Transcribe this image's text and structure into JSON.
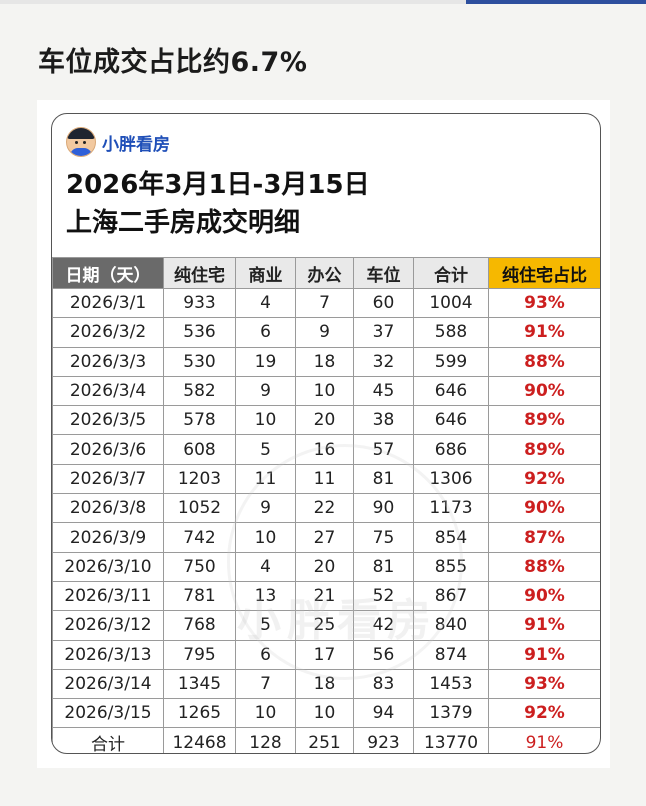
{
  "headline": "车位成交占比约6.7%",
  "brand": {
    "name": "小胖看房",
    "avatar_icon": "cartoon-avatar-icon"
  },
  "title": {
    "line1": "2026年3月1日-3月15日",
    "line2": "上海二手房成交明细"
  },
  "watermark": "小胖看房",
  "table": {
    "headers": [
      "日期（天）",
      "纯住宅",
      "商业",
      "办公",
      "车位",
      "合计",
      "纯住宅占比"
    ],
    "rows": [
      [
        "2026/3/1",
        "933",
        "4",
        "7",
        "60",
        "1004",
        "93%"
      ],
      [
        "2026/3/2",
        "536",
        "6",
        "9",
        "37",
        "588",
        "91%"
      ],
      [
        "2026/3/3",
        "530",
        "19",
        "18",
        "32",
        "599",
        "88%"
      ],
      [
        "2026/3/4",
        "582",
        "9",
        "10",
        "45",
        "646",
        "90%"
      ],
      [
        "2026/3/5",
        "578",
        "10",
        "20",
        "38",
        "646",
        "89%"
      ],
      [
        "2026/3/6",
        "608",
        "5",
        "16",
        "57",
        "686",
        "89%"
      ],
      [
        "2026/3/7",
        "1203",
        "11",
        "11",
        "81",
        "1306",
        "92%"
      ],
      [
        "2026/3/8",
        "1052",
        "9",
        "22",
        "90",
        "1173",
        "90%"
      ],
      [
        "2026/3/9",
        "742",
        "10",
        "27",
        "75",
        "854",
        "87%"
      ],
      [
        "2026/3/10",
        "750",
        "4",
        "20",
        "81",
        "855",
        "88%"
      ],
      [
        "2026/3/11",
        "781",
        "13",
        "21",
        "52",
        "867",
        "90%"
      ],
      [
        "2026/3/12",
        "768",
        "5",
        "25",
        "42",
        "840",
        "91%"
      ],
      [
        "2026/3/13",
        "795",
        "6",
        "17",
        "56",
        "874",
        "91%"
      ],
      [
        "2026/3/14",
        "1345",
        "7",
        "18",
        "83",
        "1453",
        "93%"
      ],
      [
        "2026/3/15",
        "1265",
        "10",
        "10",
        "94",
        "1379",
        "92%"
      ]
    ],
    "total": [
      "合计",
      "12468",
      "128",
      "251",
      "923",
      "13770",
      "91%"
    ]
  },
  "colors": {
    "date_header_bg": "#6a6a6a",
    "ratio_header_bg": "#f6b800",
    "ratio_text": "#cc1f1f",
    "brand": "#1f4fb8"
  }
}
